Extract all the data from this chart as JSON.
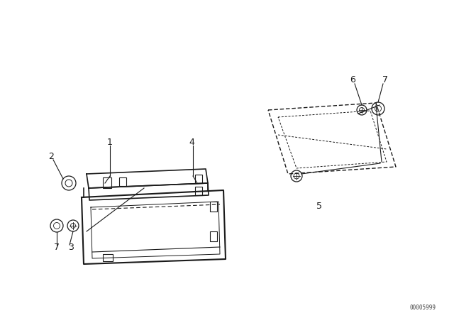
{
  "bg_color": "#ffffff",
  "line_color": "#1a1a1a",
  "watermark": "00005999",
  "figsize": [
    6.4,
    4.48
  ],
  "dpi": 100,
  "xlim": [
    0,
    640
  ],
  "ylim": [
    0,
    448
  ]
}
